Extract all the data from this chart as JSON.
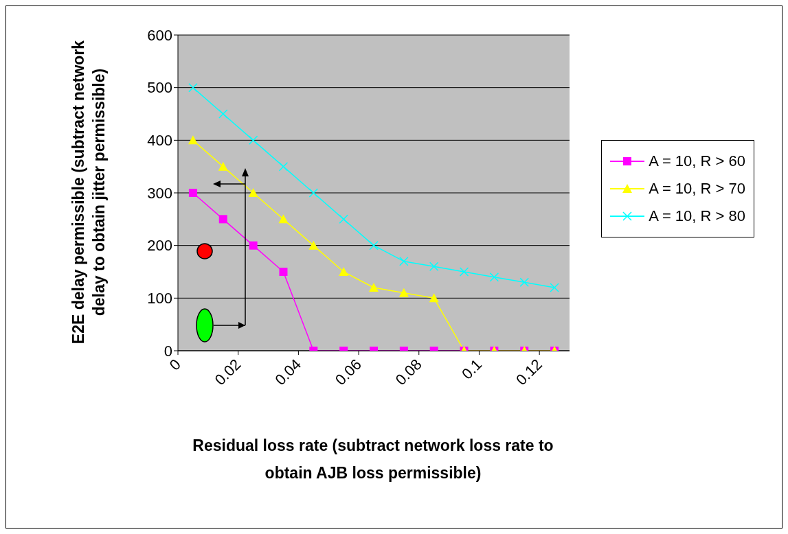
{
  "chart_data": {
    "type": "line",
    "xlabel": "Residual loss rate (subtract network loss rate to obtain AJB loss permissible)",
    "ylabel": "E2E delay permissible (subtract network delay to obtain jitter permissible)",
    "x": [
      0.005,
      0.015,
      0.025,
      0.035,
      0.045,
      0.055,
      0.065,
      0.075,
      0.085,
      0.095,
      0.105,
      0.115,
      0.125
    ],
    "xlim": [
      0,
      0.13
    ],
    "xticks": [
      0,
      0.02,
      0.04,
      0.06,
      0.08,
      0.1,
      0.12
    ],
    "ylim": [
      0,
      600
    ],
    "yticks": [
      0,
      100,
      200,
      300,
      400,
      500,
      600
    ],
    "grid": "y",
    "legend": "right",
    "series": [
      {
        "name": "A = 10, R > 60",
        "color": "#ff00ff",
        "marker": "square",
        "values": [
          300,
          250,
          200,
          150,
          0,
          0,
          0,
          0,
          0,
          0,
          0,
          0,
          0
        ]
      },
      {
        "name": "A = 10, R > 70",
        "color": "#ffff00",
        "marker": "triangle",
        "values": [
          400,
          350,
          300,
          250,
          200,
          150,
          120,
          110,
          100,
          0,
          0,
          0,
          0
        ]
      },
      {
        "name": "A = 10, R > 80",
        "color": "#00ffff",
        "marker": "cross",
        "values": [
          500,
          450,
          400,
          350,
          300,
          250,
          200,
          170,
          160,
          150,
          140,
          130,
          120
        ]
      }
    ]
  }
}
